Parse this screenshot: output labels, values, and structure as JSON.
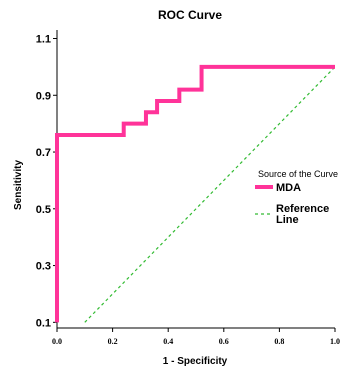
{
  "chart_data": {
    "type": "line",
    "title": "ROC Curve",
    "xlabel": "1 - Specificity",
    "ylabel": "Sensitivity",
    "xlim": [
      0.0,
      1.0
    ],
    "ylim": [
      0.08,
      1.13
    ],
    "xticks": [
      0.0,
      0.2,
      0.4,
      0.6,
      0.8,
      1.0
    ],
    "xtick_labels": [
      "0.0",
      "0.2",
      "0.4",
      "0.6",
      "0.8",
      "1.0"
    ],
    "yticks": [
      0.1,
      0.3,
      0.5,
      0.7,
      0.9,
      1.1
    ],
    "ytick_labels": [
      "0.1",
      "0.3",
      "0.5",
      "0.7",
      "0.9",
      "1.1"
    ],
    "grid": false,
    "legend": {
      "title": "Source of the Curve",
      "placement": "right",
      "entries": [
        "MDA",
        "Reference Line"
      ]
    },
    "series": [
      {
        "name": "MDA",
        "color": "#ff3399",
        "style": "solid",
        "x": [
          0.0,
          0.0,
          0.24,
          0.24,
          0.32,
          0.32,
          0.36,
          0.36,
          0.44,
          0.44,
          0.52,
          0.52,
          1.0
        ],
        "y": [
          0.1,
          0.76,
          0.76,
          0.8,
          0.8,
          0.84,
          0.84,
          0.88,
          0.88,
          0.92,
          0.92,
          1.0,
          1.0
        ]
      },
      {
        "name": "Reference Line",
        "color": "#33bb33",
        "style": "dashed",
        "x": [
          0.1,
          1.0
        ],
        "y": [
          0.1,
          1.0
        ]
      }
    ]
  }
}
